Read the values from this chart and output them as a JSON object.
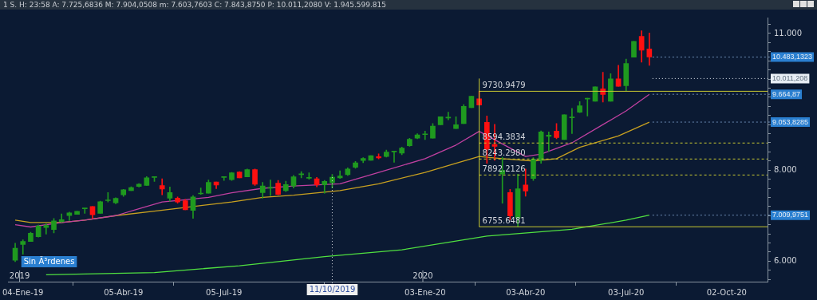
{
  "chart_data": {
    "type": "candlestick",
    "title": "1 S. H: 23:58 A: 7.725,6836 M: 7.904,0508 m: 7.603,7603 C: 7.843,8750 P: 10.011,2080 V: 1.945.599.815",
    "x": [
      "2018-12-28",
      "2019-01-04",
      "2019-01-11",
      "2019-01-18",
      "2019-01-25",
      "2019-02-01",
      "2019-02-08",
      "2019-02-15",
      "2019-02-22",
      "2019-03-01",
      "2019-03-08",
      "2019-03-15",
      "2019-03-22",
      "2019-03-29",
      "2019-04-05",
      "2019-04-12",
      "2019-04-19",
      "2019-04-26",
      "2019-05-03",
      "2019-05-10",
      "2019-05-17",
      "2019-05-24",
      "2019-05-31",
      "2019-06-07",
      "2019-06-14",
      "2019-06-21",
      "2019-06-28",
      "2019-07-05",
      "2019-07-12",
      "2019-07-19",
      "2019-07-26",
      "2019-08-02",
      "2019-08-09",
      "2019-08-16",
      "2019-08-23",
      "2019-08-30",
      "2019-09-06",
      "2019-09-13",
      "2019-09-20",
      "2019-09-27",
      "2019-10-04",
      "2019-10-11",
      "2019-10-18",
      "2019-10-25",
      "2019-11-01",
      "2019-11-08",
      "2019-11-15",
      "2019-11-22",
      "2019-11-29",
      "2019-12-06",
      "2019-12-13",
      "2019-12-20",
      "2019-12-27",
      "2020-01-03",
      "2020-01-10",
      "2020-01-17",
      "2020-01-24",
      "2020-01-31",
      "2020-02-07",
      "2020-02-14",
      "2020-02-21",
      "2020-02-28",
      "2020-03-06",
      "2020-03-13",
      "2020-03-20",
      "2020-03-27",
      "2020-04-03",
      "2020-04-10",
      "2020-04-17",
      "2020-04-24",
      "2020-05-01",
      "2020-05-08",
      "2020-05-15",
      "2020-05-22",
      "2020-05-29",
      "2020-06-05",
      "2020-06-12",
      "2020-06-19",
      "2020-06-26",
      "2020-07-03",
      "2020-07-10",
      "2020-07-17",
      "2020-07-24"
    ],
    "ohlc": [
      [
        6020,
        6395,
        5990,
        6285
      ],
      [
        6366,
        6467,
        6150,
        6433
      ],
      [
        6433,
        6633,
        6430,
        6611
      ],
      [
        6539,
        6794,
        6530,
        6772
      ],
      [
        6739,
        6817,
        6594,
        6783
      ],
      [
        6694,
        6939,
        6622,
        6883
      ],
      [
        6867,
        7039,
        6856,
        6911
      ],
      [
        7000,
        7078,
        6894,
        7061
      ],
      [
        7028,
        7094,
        7028,
        7094
      ],
      [
        7150,
        7161,
        7050,
        7160
      ],
      [
        7200,
        7200,
        6939,
        7017
      ],
      [
        7050,
        7317,
        7050,
        7305
      ],
      [
        7328,
        7506,
        7300,
        7333
      ],
      [
        7283,
        7394,
        7261,
        7378
      ],
      [
        7456,
        7578,
        7422,
        7567
      ],
      [
        7550,
        7633,
        7550,
        7617
      ],
      [
        7639,
        7706,
        7628,
        7689
      ],
      [
        7661,
        7856,
        7661,
        7833
      ],
      [
        7839,
        7856,
        7750,
        7844
      ],
      [
        7661,
        7811,
        7456,
        7583
      ],
      [
        7383,
        7628,
        7317,
        7506
      ],
      [
        7383,
        7411,
        7272,
        7300
      ],
      [
        7328,
        7356,
        7128,
        7128
      ],
      [
        7117,
        7439,
        6939,
        7411
      ],
      [
        7478,
        7606,
        7467,
        7490
      ],
      [
        7494,
        7783,
        7494,
        7728
      ],
      [
        7739,
        7739,
        7594,
        7672
      ],
      [
        7839,
        7856,
        7772,
        7844
      ],
      [
        7789,
        7950,
        7772,
        7939
      ],
      [
        7956,
        7967,
        7828,
        7828
      ],
      [
        7850,
        8022,
        7850,
        8011
      ],
      [
        8011,
        8022,
        7661,
        7689
      ],
      [
        7506,
        7728,
        7383,
        7650
      ],
      [
        7600,
        7783,
        7439,
        7620
      ],
      [
        7711,
        7772,
        7455,
        7466
      ],
      [
        7550,
        7755,
        7528,
        7683
      ],
      [
        7650,
        7883,
        7605,
        7855
      ],
      [
        7900,
        7967,
        7828,
        7910
      ],
      [
        7822,
        7939,
        7800,
        7832
      ],
      [
        7811,
        7839,
        7633,
        7678
      ],
      [
        7678,
        7772,
        7494,
        7750
      ],
      [
        7725.6836,
        7904.0508,
        7603.7603,
        7843.875
      ],
      [
        7828,
        7983,
        7816,
        7872
      ],
      [
        7900,
        8050,
        7883,
        8022
      ],
      [
        8061,
        8189,
        8039,
        8161
      ],
      [
        8211,
        8272,
        8161,
        8255
      ],
      [
        8216,
        8316,
        8216,
        8316
      ],
      [
        8294,
        8355,
        8244,
        8266
      ],
      [
        8300,
        8439,
        8283,
        8394
      ],
      [
        8400,
        8411,
        8172,
        8410
      ],
      [
        8372,
        8505,
        8339,
        8483
      ],
      [
        8533,
        8700,
        8522,
        8677
      ],
      [
        8700,
        8800,
        8689,
        8772
      ],
      [
        8778,
        8855,
        8672,
        8790
      ],
      [
        8700,
        9022,
        8700,
        8966
      ],
      [
        8994,
        9172,
        8994,
        9172
      ],
      [
        9144,
        9272,
        9105,
        9155
      ],
      [
        8911,
        9172,
        8911,
        8994
      ],
      [
        9022,
        9438,
        9022,
        9400
      ],
      [
        9372,
        9622,
        9372,
        9622
      ],
      [
        9567,
        9730.9479,
        9428,
        9428
      ],
      [
        9050,
        9189,
        8150,
        8461
      ],
      [
        8561,
        9005,
        8217,
        8522
      ],
      [
        7911,
        8283,
        7272,
        7994
      ],
      [
        7505,
        7578,
        6911,
        6994
      ],
      [
        6950,
        7911,
        6755.6481,
        7589
      ],
      [
        7672,
        8022,
        7428,
        7539
      ],
      [
        7817,
        8272,
        7772,
        8244
      ],
      [
        8216,
        8861,
        8150,
        8839
      ],
      [
        8739,
        8839,
        8411,
        8767
      ],
      [
        8855,
        9022,
        8689,
        8716
      ],
      [
        8672,
        9216,
        8672,
        9216
      ],
      [
        9150,
        9355,
        8800,
        9162
      ],
      [
        9272,
        9505,
        9261,
        9411
      ],
      [
        9561,
        9578,
        9189,
        9572
      ],
      [
        9511,
        9828,
        9511,
        9828
      ],
      [
        9783,
        10150,
        9494,
        9661
      ],
      [
        9511,
        10116,
        9511,
        10005
      ],
      [
        10005,
        10300,
        9839,
        9839
      ],
      [
        9855,
        10439,
        9744,
        10339
      ],
      [
        10478,
        10828,
        10478,
        10828
      ],
      [
        10939,
        11061,
        10372,
        10633
      ],
      [
        10661,
        11011,
        10300,
        10483.1323
      ]
    ],
    "series": [
      {
        "type": "line",
        "color": "#c040a0",
        "x": [
          "2018-12-28",
          "2019-01-11",
          "2019-02-08",
          "2019-03-01",
          "2019-03-29",
          "2019-04-19",
          "2019-05-10",
          "2019-05-31",
          "2019-06-21",
          "2019-07-12",
          "2019-08-09",
          "2019-09-06",
          "2019-10-18",
          "2019-11-22",
          "2020-01-03",
          "2020-01-31",
          "2020-02-21",
          "2020-04-03",
          "2020-04-17",
          "2020-05-15",
          "2020-06-12",
          "2020-07-03",
          "2020-07-24"
        ],
        "values": [
          6800,
          6750,
          6850,
          6900,
          7000,
          7150,
          7300,
          7350,
          7400,
          7500,
          7600,
          7650,
          7700,
          7950,
          8250,
          8550,
          8850,
          8300,
          8350,
          8600,
          9000,
          9300,
          9664.87
        ]
      },
      {
        "type": "line",
        "color": "#c8a020",
        "x": [
          "2018-12-28",
          "2019-01-11",
          "2019-02-08",
          "2019-03-01",
          "2019-03-29",
          "2019-05-03",
          "2019-06-07",
          "2019-07-12",
          "2019-08-09",
          "2019-09-06",
          "2019-10-18",
          "2019-11-22",
          "2020-01-03",
          "2020-01-31",
          "2020-02-21",
          "2020-03-13",
          "2020-04-10",
          "2020-05-01",
          "2020-05-22",
          "2020-06-26",
          "2020-07-24"
        ],
        "values": [
          6900,
          6850,
          6850,
          6900,
          7000,
          7100,
          7200,
          7300,
          7400,
          7450,
          7550,
          7700,
          7950,
          8150,
          8300,
          8250,
          8200,
          8250,
          8500,
          8750,
          9053.8285
        ]
      },
      {
        "type": "line",
        "color": "#50e040",
        "x": [
          "2019-01-25",
          "2019-05-03",
          "2019-07-19",
          "2019-10-04",
          "2019-12-13",
          "2020-02-28",
          "2020-05-15",
          "2020-07-03",
          "2020-07-24"
        ],
        "values": [
          5700,
          5750,
          5900,
          6100,
          6250,
          6550,
          6700,
          6900,
          7009.9751
        ]
      }
    ],
    "xlim": [
      "2018-12-22",
      "2020-11-08"
    ],
    "xticks": [
      {
        "value": "2019-01-04",
        "label": "04-Ene-19"
      },
      {
        "value": "2019-04-05",
        "label": "05-Abr-19"
      },
      {
        "value": "2019-07-05",
        "label": "05-Jul-19"
      },
      {
        "value": "2020-01-03",
        "label": "03-Ene-20"
      },
      {
        "value": "2020-04-03",
        "label": "03-Abr-20"
      },
      {
        "value": "2020-07-03",
        "label": "03-Jul-20"
      },
      {
        "value": "2020-10-02",
        "label": "02-Oct-20"
      }
    ],
    "x2lim": [
      "2018-12-22",
      "2020-11-08"
    ],
    "x2ticks": [
      {
        "value": "2019-01-01",
        "label": "2019"
      },
      {
        "value": "2020-01-01",
        "label": "2020"
      }
    ],
    "ylim": [
      5550,
      11350
    ],
    "yticks": [
      {
        "value": 5600,
        "label": null
      },
      {
        "value": 5800,
        "label": null
      },
      {
        "value": 6000,
        "label": "6.000"
      },
      {
        "value": 6200,
        "label": null
      },
      {
        "value": 6400,
        "label": null
      },
      {
        "value": 6600,
        "label": null
      },
      {
        "value": 6800,
        "label": null
      },
      {
        "value": 7000,
        "label": null
      },
      {
        "value": 7200,
        "label": null
      },
      {
        "value": 7400,
        "label": null
      },
      {
        "value": 7600,
        "label": null
      },
      {
        "value": 7800,
        "label": null
      },
      {
        "value": 8000,
        "label": "8.000"
      },
      {
        "value": 8200,
        "label": null
      },
      {
        "value": 8400,
        "label": null
      },
      {
        "value": 8600,
        "label": null
      },
      {
        "value": 8800,
        "label": null
      },
      {
        "value": 9000,
        "label": null
      },
      {
        "value": 9200,
        "label": null
      },
      {
        "value": 9400,
        "label": null
      },
      {
        "value": 9600,
        "label": null
      },
      {
        "value": 9800,
        "label": null
      },
      {
        "value": 10000,
        "label": null
      },
      {
        "value": 10200,
        "label": null
      },
      {
        "value": 10400,
        "label": null
      },
      {
        "value": 10600,
        "label": null
      },
      {
        "value": 10800,
        "label": null
      },
      {
        "value": 11000,
        "label": "11.000"
      },
      {
        "value": 11200,
        "label": null
      }
    ],
    "ref_lines": [
      {
        "axis": "x",
        "value": "2020-02-21",
        "color": "#c8c832"
      },
      {
        "axis": "y",
        "value": 10011.208,
        "label": "10.011,208",
        "color": "#e8eef5",
        "line_style": "dotted"
      },
      {
        "axis": "y",
        "value": 9730.9479,
        "label": "9730.9479",
        "color": "#c8c832",
        "line_style": "solid"
      },
      {
        "axis": "y",
        "value": 8594.3834,
        "label": "8594.3834",
        "color": "#c8c832",
        "line_style": "dashed"
      },
      {
        "axis": "y",
        "value": 8243.298,
        "label": "8243.2980",
        "color": "#c8c832",
        "line_style": "dashed"
      },
      {
        "axis": "y",
        "value": 7892.2126,
        "label": "7892.2126",
        "color": "#c8c832",
        "line_style": "dashed"
      },
      {
        "axis": "y",
        "value": 6755.6481,
        "label": "6755.6481",
        "color": "#c8c832",
        "line_style": "solid"
      }
    ],
    "annotations": [
      "Sin Ã³rdenes",
      {
        "text": "10.483,1323",
        "x": "2020-07-24",
        "y": 10483.1323
      },
      {
        "text": "11/10/2019",
        "x": "2019-10-11",
        "y": 7843.875
      },
      {
        "text": "9.664,87",
        "x": "2020-07-24",
        "y": 9664.87
      },
      {
        "text": "9.053,8285",
        "x": "2020-07-24",
        "y": 9053.8285
      },
      {
        "text": "7.009,9751",
        "x": "2020-07-24",
        "y": 7009.9751
      }
    ],
    "grid": false,
    "legend": false,
    "marker": "none"
  }
}
